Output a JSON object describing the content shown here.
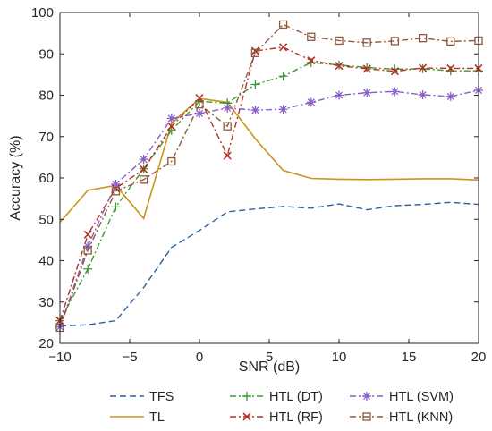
{
  "chart_data": {
    "type": "line",
    "title": "",
    "xlabel": "SNR (dB)",
    "ylabel": "Accuracy (%)",
    "xlim": [
      -10,
      20
    ],
    "ylim": [
      20,
      100
    ],
    "xticks": [
      -10,
      -5,
      0,
      5,
      10,
      15,
      20
    ],
    "yticks": [
      20,
      30,
      40,
      50,
      60,
      70,
      80,
      90,
      100
    ],
    "grid": false,
    "legend_position": "bottom",
    "series": [
      {
        "name": "TFS",
        "color": "#2e5fa3",
        "dash": "dashed",
        "marker": "none",
        "x": [
          -10,
          -8,
          -6,
          -4,
          -2,
          0,
          2,
          4,
          6,
          8,
          10,
          12,
          14,
          16,
          18,
          20
        ],
        "y": [
          24.2,
          24.5,
          25.5,
          33.5,
          43.2,
          47.3,
          51.8,
          52.5,
          53.1,
          52.7,
          53.7,
          52.3,
          53.3,
          53.6,
          54.1,
          53.6
        ]
      },
      {
        "name": "TL",
        "color": "#c8951e",
        "dash": "solid",
        "marker": "none",
        "x": [
          -10,
          -8,
          -6,
          -4,
          -2,
          0,
          2,
          4,
          6,
          8,
          10,
          12,
          14,
          16,
          18,
          20
        ],
        "y": [
          49.3,
          57.0,
          58.2,
          50.2,
          73.2,
          79.2,
          78.3,
          69.5,
          61.8,
          59.9,
          59.7,
          59.6,
          59.7,
          59.8,
          59.8,
          59.5
        ]
      },
      {
        "name": "HTL (DT)",
        "color": "#3a9a32",
        "dash": "dashdot",
        "marker": "plus",
        "x": [
          -10,
          -8,
          -6,
          -4,
          -2,
          0,
          2,
          4,
          6,
          8,
          10,
          12,
          14,
          16,
          18,
          20
        ],
        "y": [
          25.5,
          38.0,
          53.0,
          62.2,
          71.5,
          78.5,
          78.1,
          82.6,
          84.6,
          87.9,
          87.3,
          86.7,
          86.3,
          86.4,
          85.9,
          85.9
        ]
      },
      {
        "name": "HTL (RF)",
        "color": "#b5302a",
        "dash": "dashdot",
        "marker": "x",
        "x": [
          -10,
          -8,
          -6,
          -4,
          -2,
          0,
          2,
          4,
          6,
          8,
          10,
          12,
          14,
          16,
          18,
          20
        ],
        "y": [
          25.5,
          46.3,
          57.5,
          62.1,
          72.5,
          79.3,
          65.4,
          90.7,
          91.6,
          88.4,
          87.1,
          86.4,
          85.8,
          86.6,
          86.5,
          86.5
        ]
      },
      {
        "name": "HTL (SVM)",
        "color": "#8a5fc9",
        "dash": "dashdot",
        "marker": "asterisk",
        "x": [
          -10,
          -8,
          -6,
          -4,
          -2,
          0,
          2,
          4,
          6,
          8,
          10,
          12,
          14,
          16,
          18,
          20
        ],
        "y": [
          24.0,
          43.5,
          58.5,
          64.5,
          74.4,
          75.6,
          76.9,
          76.4,
          76.6,
          78.3,
          80.0,
          80.6,
          80.9,
          80.1,
          79.7,
          81.2
        ]
      },
      {
        "name": "HTL (KNN)",
        "color": "#8c5a3c",
        "dash": "dashdot",
        "marker": "square",
        "x": [
          -10,
          -8,
          -6,
          -4,
          -2,
          0,
          2,
          4,
          6,
          8,
          10,
          12,
          14,
          16,
          18,
          20
        ],
        "y": [
          23.8,
          42.5,
          56.8,
          59.6,
          64.0,
          77.8,
          72.5,
          90.2,
          97.1,
          94.1,
          93.2,
          92.7,
          93.1,
          93.8,
          93.0,
          93.2
        ]
      }
    ],
    "legend_order": [
      0,
      2,
      4,
      1,
      3,
      5
    ]
  }
}
